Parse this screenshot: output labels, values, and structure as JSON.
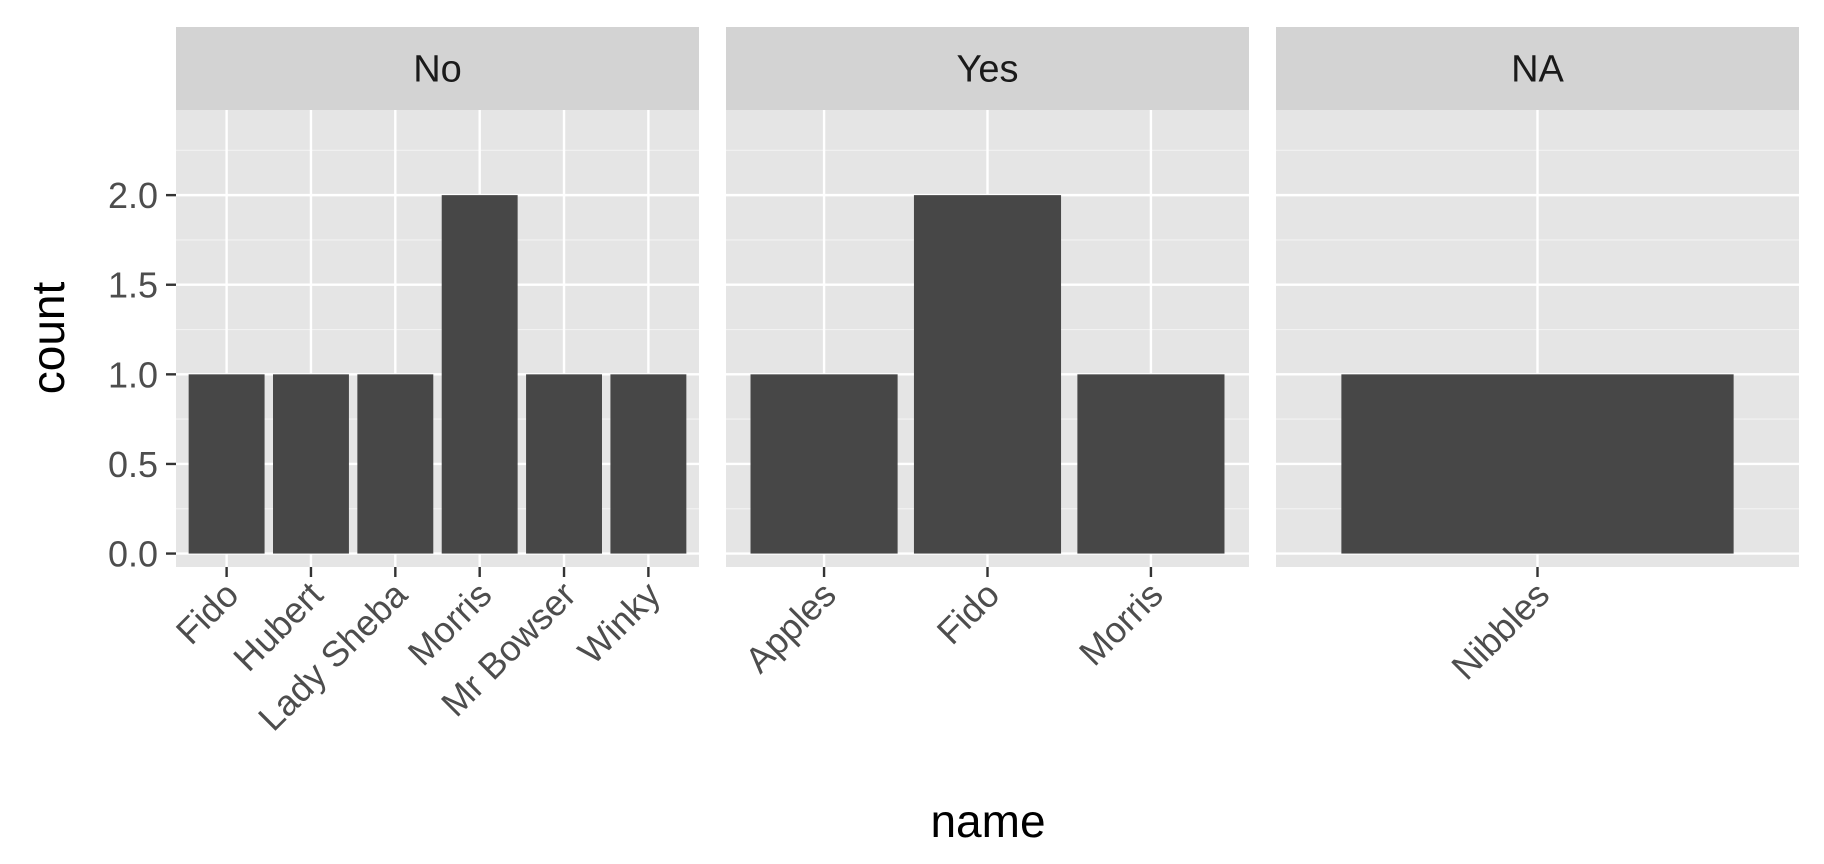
{
  "chart_data": {
    "type": "bar",
    "xlabel": "name",
    "ylabel": "count",
    "ylim": [
      -0.075,
      2.475
    ],
    "y_ticks": [
      "0.0",
      "0.5",
      "1.0",
      "1.5",
      "2.0"
    ],
    "y_tick_values": [
      0,
      0.5,
      1,
      1.5,
      2
    ],
    "y_minor_values": [
      0.25,
      0.75,
      1.25,
      1.75,
      2.25
    ],
    "grid": true,
    "bar_color": "#474747",
    "panel_color": "#e5e5e5",
    "strip_color": "#d3d3d3",
    "facets": [
      {
        "label": "No",
        "categories": [
          "Fido",
          "Hubert",
          "Lady Sheba",
          "Morris",
          "Mr Bowser",
          "Winky"
        ],
        "values": [
          1,
          1,
          1,
          2,
          1,
          1
        ]
      },
      {
        "label": "Yes",
        "categories": [
          "Apples",
          "Fido",
          "Morris"
        ],
        "values": [
          1,
          2,
          1
        ]
      },
      {
        "label": "NA",
        "categories": [
          "Nibbles"
        ],
        "values": [
          1
        ]
      }
    ]
  }
}
